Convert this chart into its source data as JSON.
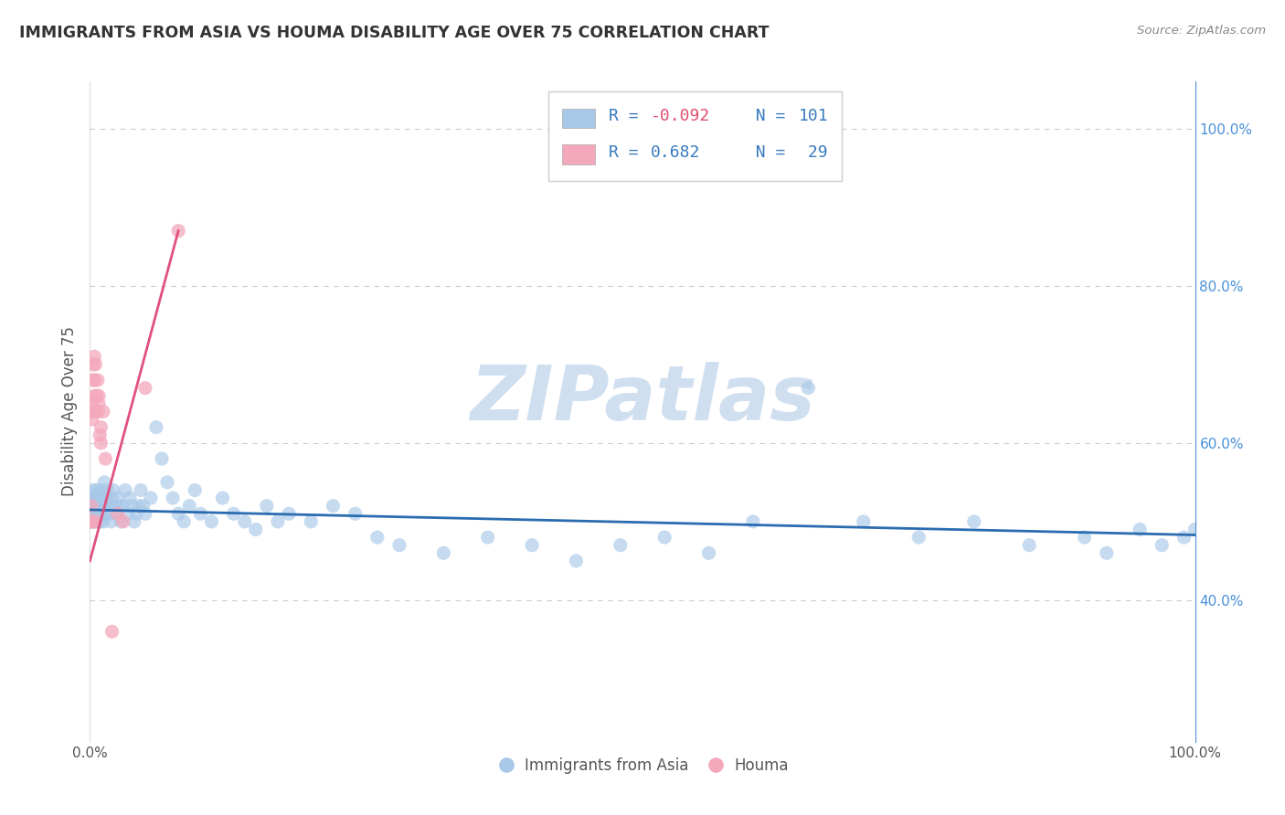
{
  "title": "IMMIGRANTS FROM ASIA VS HOUMA DISABILITY AGE OVER 75 CORRELATION CHART",
  "source": "Source: ZipAtlas.com",
  "ylabel": "Disability Age Over 75",
  "legend_label_blue": "Immigrants from Asia",
  "legend_label_pink": "Houma",
  "blue_color": "#a8c8e8",
  "pink_color": "#f4a8bc",
  "blue_line_color": "#2b6cb0",
  "pink_line_color": "#e05080",
  "r_color": "#e05080",
  "n_color": "#2b6cb0",
  "watermark": "ZIPatlas",
  "watermark_color": "#d0dff0",
  "background_color": "#ffffff",
  "blue_scatter_x": [
    0.001,
    0.001,
    0.002,
    0.002,
    0.002,
    0.002,
    0.003,
    0.003,
    0.003,
    0.003,
    0.003,
    0.003,
    0.004,
    0.004,
    0.004,
    0.005,
    0.005,
    0.005,
    0.006,
    0.006,
    0.006,
    0.007,
    0.007,
    0.008,
    0.008,
    0.009,
    0.009,
    0.01,
    0.01,
    0.011,
    0.011,
    0.012,
    0.012,
    0.013,
    0.014,
    0.015,
    0.015,
    0.016,
    0.017,
    0.018,
    0.019,
    0.02,
    0.021,
    0.022,
    0.024,
    0.025,
    0.026,
    0.028,
    0.03,
    0.032,
    0.034,
    0.036,
    0.038,
    0.04,
    0.042,
    0.044,
    0.046,
    0.048,
    0.05,
    0.055,
    0.06,
    0.065,
    0.07,
    0.075,
    0.08,
    0.085,
    0.09,
    0.095,
    0.1,
    0.11,
    0.12,
    0.13,
    0.14,
    0.15,
    0.16,
    0.17,
    0.18,
    0.2,
    0.22,
    0.24,
    0.26,
    0.28,
    0.32,
    0.36,
    0.4,
    0.44,
    0.48,
    0.52,
    0.56,
    0.6,
    0.65,
    0.7,
    0.75,
    0.8,
    0.85,
    0.9,
    0.92,
    0.95,
    0.97,
    0.99,
    1.0
  ],
  "blue_scatter_y": [
    0.52,
    0.5,
    0.51,
    0.53,
    0.5,
    0.52,
    0.51,
    0.52,
    0.5,
    0.53,
    0.54,
    0.51,
    0.52,
    0.5,
    0.53,
    0.52,
    0.51,
    0.5,
    0.53,
    0.52,
    0.54,
    0.51,
    0.52,
    0.53,
    0.51,
    0.52,
    0.5,
    0.53,
    0.54,
    0.52,
    0.51,
    0.5,
    0.53,
    0.55,
    0.52,
    0.51,
    0.53,
    0.54,
    0.52,
    0.51,
    0.5,
    0.53,
    0.54,
    0.52,
    0.51,
    0.53,
    0.52,
    0.5,
    0.52,
    0.54,
    0.51,
    0.53,
    0.52,
    0.5,
    0.51,
    0.52,
    0.54,
    0.52,
    0.51,
    0.53,
    0.62,
    0.58,
    0.55,
    0.53,
    0.51,
    0.5,
    0.52,
    0.54,
    0.51,
    0.5,
    0.53,
    0.51,
    0.5,
    0.49,
    0.52,
    0.5,
    0.51,
    0.5,
    0.52,
    0.51,
    0.48,
    0.47,
    0.46,
    0.48,
    0.47,
    0.45,
    0.47,
    0.48,
    0.46,
    0.5,
    0.67,
    0.5,
    0.48,
    0.5,
    0.47,
    0.48,
    0.46,
    0.49,
    0.47,
    0.48,
    0.49
  ],
  "pink_scatter_x": [
    0.001,
    0.001,
    0.002,
    0.002,
    0.002,
    0.003,
    0.003,
    0.003,
    0.004,
    0.004,
    0.004,
    0.005,
    0.005,
    0.006,
    0.006,
    0.007,
    0.007,
    0.008,
    0.008,
    0.009,
    0.01,
    0.01,
    0.012,
    0.014,
    0.02,
    0.025,
    0.03,
    0.05,
    0.08
  ],
  "pink_scatter_y": [
    0.52,
    0.5,
    0.5,
    0.63,
    0.65,
    0.64,
    0.68,
    0.7,
    0.66,
    0.71,
    0.68,
    0.7,
    0.5,
    0.64,
    0.66,
    0.64,
    0.68,
    0.66,
    0.65,
    0.61,
    0.6,
    0.62,
    0.64,
    0.58,
    0.36,
    0.51,
    0.5,
    0.67,
    0.87
  ],
  "xlim": [
    0.0,
    1.0
  ],
  "ylim": [
    0.22,
    1.06
  ],
  "blue_trend_x": [
    0.0,
    1.0
  ],
  "blue_trend_y": [
    0.515,
    0.483
  ],
  "pink_trend_x": [
    0.0,
    0.08
  ],
  "pink_trend_y": [
    0.45,
    0.87
  ],
  "ytick_vals": [
    0.4,
    0.6,
    0.8,
    1.0
  ],
  "ytick_labels": [
    "40.0%",
    "60.0%",
    "80.0%",
    "100.0%"
  ]
}
